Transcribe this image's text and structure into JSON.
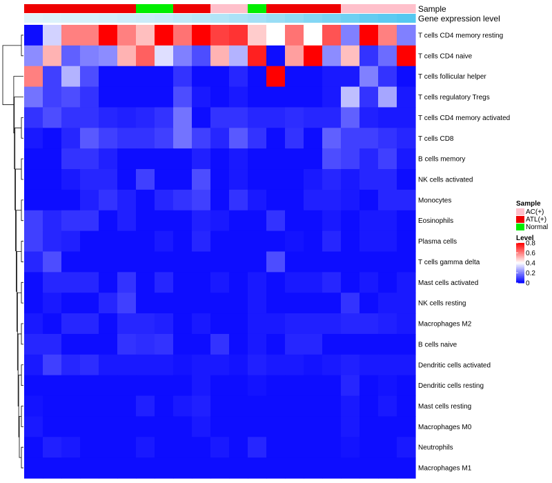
{
  "chart_data": {
    "type": "heatmap",
    "title": "",
    "annotation_rows": [
      {
        "name": "Sample",
        "label": "Sample"
      },
      {
        "name": "Gene expression level",
        "label": "Gene expression level"
      }
    ],
    "sample_groups": [
      "ATL(+)",
      "ATL(+)",
      "ATL(+)",
      "ATL(+)",
      "ATL(+)",
      "ATL(+)",
      "Normal",
      "Normal",
      "ATL(+)",
      "ATL(+)",
      "AC(+)",
      "AC(+)",
      "Normal",
      "ATL(+)",
      "ATL(+)",
      "ATL(+)",
      "ATL(+)",
      "AC(+)",
      "AC(+)",
      "AC(+)",
      "AC(+)"
    ],
    "expression_levels": [
      0.02,
      0.04,
      0.06,
      0.08,
      0.1,
      0.12,
      0.14,
      0.16,
      0.2,
      0.24,
      0.28,
      0.32,
      0.36,
      0.42,
      0.48,
      0.54,
      0.6,
      0.66,
      0.72,
      0.76,
      0.8
    ],
    "rows": [
      "T cells CD4 memory resting",
      "T cells CD4 naive",
      "T cells follicular helper",
      "T cells regulatory  Tregs",
      "T cells CD4 memory activated",
      "T cells CD8",
      "B cells memory",
      "NK cells activated",
      "Monocytes",
      "Eosinophils",
      "Plasma cells",
      "T cells gamma delta",
      "Mast cells activated",
      "NK cells resting",
      "Macrophages M2",
      "B cells naive",
      "Dendritic cells activated",
      "Dendritic cells resting",
      "Mast cells resting",
      "Macrophages M0",
      "Neutrophils",
      "Macrophages M1"
    ],
    "values": [
      [
        0.02,
        0.33,
        0.6,
        0.6,
        0.8,
        0.6,
        0.5,
        0.8,
        0.62,
        0.8,
        0.7,
        0.72,
        0.48,
        0.4,
        0.62,
        0.4,
        0.67,
        0.2,
        0.8,
        0.6,
        0.2
      ],
      [
        0.22,
        0.52,
        0.15,
        0.2,
        0.22,
        0.52,
        0.65,
        0.35,
        0.2,
        0.12,
        0.52,
        0.28,
        0.75,
        0.02,
        0.55,
        0.8,
        0.22,
        0.5,
        0.08,
        0.17,
        0.8
      ],
      [
        0.6,
        0.1,
        0.28,
        0.12,
        0.02,
        0.02,
        0.02,
        0.02,
        0.08,
        0.02,
        0.02,
        0.06,
        0.02,
        0.8,
        0.02,
        0.02,
        0.04,
        0.04,
        0.2,
        0.08,
        0.02
      ],
      [
        0.18,
        0.1,
        0.12,
        0.08,
        0.02,
        0.02,
        0.02,
        0.02,
        0.12,
        0.04,
        0.02,
        0.04,
        0.02,
        0.02,
        0.02,
        0.02,
        0.04,
        0.3,
        0.08,
        0.26,
        0.04
      ],
      [
        0.08,
        0.12,
        0.08,
        0.08,
        0.06,
        0.05,
        0.06,
        0.08,
        0.18,
        0.02,
        0.08,
        0.08,
        0.06,
        0.06,
        0.07,
        0.06,
        0.06,
        0.15,
        0.05,
        0.04,
        0.04
      ],
      [
        0.04,
        0.02,
        0.06,
        0.14,
        0.1,
        0.08,
        0.08,
        0.1,
        0.18,
        0.1,
        0.06,
        0.14,
        0.08,
        0.02,
        0.08,
        0.02,
        0.15,
        0.1,
        0.1,
        0.08,
        0.06
      ],
      [
        0.02,
        0.02,
        0.08,
        0.08,
        0.05,
        0.02,
        0.02,
        0.02,
        0.02,
        0.05,
        0.02,
        0.04,
        0.02,
        0.02,
        0.02,
        0.02,
        0.12,
        0.1,
        0.06,
        0.1,
        0.04
      ],
      [
        0.02,
        0.02,
        0.04,
        0.06,
        0.06,
        0.02,
        0.1,
        0.02,
        0.02,
        0.12,
        0.02,
        0.04,
        0.02,
        0.02,
        0.02,
        0.04,
        0.06,
        0.04,
        0.06,
        0.06,
        0.02
      ],
      [
        0.02,
        0.02,
        0.02,
        0.05,
        0.08,
        0.05,
        0.02,
        0.06,
        0.08,
        0.1,
        0.02,
        0.08,
        0.04,
        0.02,
        0.02,
        0.05,
        0.05,
        0.04,
        0.02,
        0.06,
        0.06
      ],
      [
        0.1,
        0.06,
        0.08,
        0.08,
        0.02,
        0.05,
        0.02,
        0.02,
        0.02,
        0.05,
        0.04,
        0.02,
        0.02,
        0.08,
        0.02,
        0.02,
        0.04,
        0.02,
        0.04,
        0.04,
        0.02
      ],
      [
        0.1,
        0.06,
        0.05,
        0.02,
        0.02,
        0.02,
        0.02,
        0.04,
        0.02,
        0.06,
        0.02,
        0.02,
        0.02,
        0.02,
        0.03,
        0.02,
        0.06,
        0.02,
        0.04,
        0.04,
        0.02
      ],
      [
        0.06,
        0.12,
        0.02,
        0.02,
        0.02,
        0.02,
        0.02,
        0.02,
        0.02,
        0.02,
        0.02,
        0.02,
        0.02,
        0.12,
        0.02,
        0.02,
        0.02,
        0.02,
        0.02,
        0.02,
        0.02
      ],
      [
        0.02,
        0.06,
        0.06,
        0.06,
        0.02,
        0.08,
        0.02,
        0.06,
        0.02,
        0.02,
        0.04,
        0.02,
        0.04,
        0.02,
        0.04,
        0.04,
        0.06,
        0.02,
        0.04,
        0.02,
        0.04
      ],
      [
        0.02,
        0.04,
        0.02,
        0.02,
        0.06,
        0.1,
        0.02,
        0.02,
        0.02,
        0.02,
        0.02,
        0.02,
        0.04,
        0.02,
        0.02,
        0.02,
        0.02,
        0.08,
        0.02,
        0.04,
        0.04
      ],
      [
        0.04,
        0.02,
        0.06,
        0.06,
        0.02,
        0.06,
        0.06,
        0.05,
        0.02,
        0.04,
        0.02,
        0.02,
        0.04,
        0.04,
        0.05,
        0.05,
        0.05,
        0.06,
        0.06,
        0.05,
        0.04
      ],
      [
        0.06,
        0.06,
        0.02,
        0.02,
        0.02,
        0.08,
        0.07,
        0.08,
        0.02,
        0.02,
        0.08,
        0.02,
        0.04,
        0.02,
        0.06,
        0.06,
        0.02,
        0.02,
        0.02,
        0.02,
        0.02
      ],
      [
        0.04,
        0.1,
        0.06,
        0.07,
        0.04,
        0.04,
        0.04,
        0.04,
        0.03,
        0.04,
        0.04,
        0.03,
        0.05,
        0.04,
        0.04,
        0.03,
        0.04,
        0.05,
        0.04,
        0.04,
        0.04
      ],
      [
        0.02,
        0.02,
        0.02,
        0.02,
        0.02,
        0.02,
        0.02,
        0.02,
        0.02,
        0.04,
        0.02,
        0.02,
        0.03,
        0.02,
        0.02,
        0.02,
        0.02,
        0.06,
        0.02,
        0.03,
        0.02
      ],
      [
        0.03,
        0.02,
        0.02,
        0.02,
        0.02,
        0.02,
        0.05,
        0.02,
        0.04,
        0.05,
        0.02,
        0.02,
        0.02,
        0.02,
        0.02,
        0.02,
        0.02,
        0.04,
        0.02,
        0.04,
        0.02
      ],
      [
        0.04,
        0.02,
        0.02,
        0.02,
        0.02,
        0.02,
        0.02,
        0.02,
        0.02,
        0.04,
        0.02,
        0.02,
        0.02,
        0.02,
        0.02,
        0.02,
        0.02,
        0.04,
        0.02,
        0.02,
        0.02
      ],
      [
        0.02,
        0.05,
        0.04,
        0.02,
        0.02,
        0.02,
        0.04,
        0.02,
        0.02,
        0.02,
        0.04,
        0.02,
        0.06,
        0.02,
        0.02,
        0.02,
        0.02,
        0.03,
        0.02,
        0.02,
        0.04
      ],
      [
        0.02,
        0.02,
        0.02,
        0.02,
        0.02,
        0.02,
        0.02,
        0.02,
        0.02,
        0.02,
        0.02,
        0.02,
        0.02,
        0.02,
        0.02,
        0.02,
        0.02,
        0.02,
        0.02,
        0.02,
        0.02
      ]
    ],
    "color_scale": {
      "low": "#0000ff",
      "mid": "#ffffff",
      "high": "#ff0000",
      "min": 0,
      "mid_value": 0.4,
      "max": 0.8
    },
    "legends": [
      {
        "title": "Sample",
        "entries": [
          {
            "label": "AC(+)",
            "color": "#ffc0cb"
          },
          {
            "label": "ATL(+)",
            "color": "#ee0000"
          },
          {
            "label": "Normal",
            "color": "#00ee00"
          }
        ]
      },
      {
        "title": "Level",
        "ticks": [
          {
            "label": "0.8",
            "value": 0.8
          },
          {
            "label": "0.6",
            "value": 0.6
          },
          {
            "label": "0.4",
            "value": 0.4
          },
          {
            "label": "0.2",
            "value": 0.2
          },
          {
            "label": "0",
            "value": 0
          }
        ]
      }
    ],
    "annotation_colors": {
      "expr_low": "#e0f3fb",
      "expr_high": "#55c8f0"
    },
    "dendrogram_merges": [
      [
        0,
        1
      ],
      [
        4,
        5
      ],
      [
        6,
        7
      ],
      [
        8,
        9
      ],
      [
        10,
        11
      ],
      [
        12,
        13
      ],
      [
        14,
        15
      ],
      [
        16,
        17
      ],
      [
        18,
        19
      ],
      [
        20,
        21
      ]
    ]
  }
}
